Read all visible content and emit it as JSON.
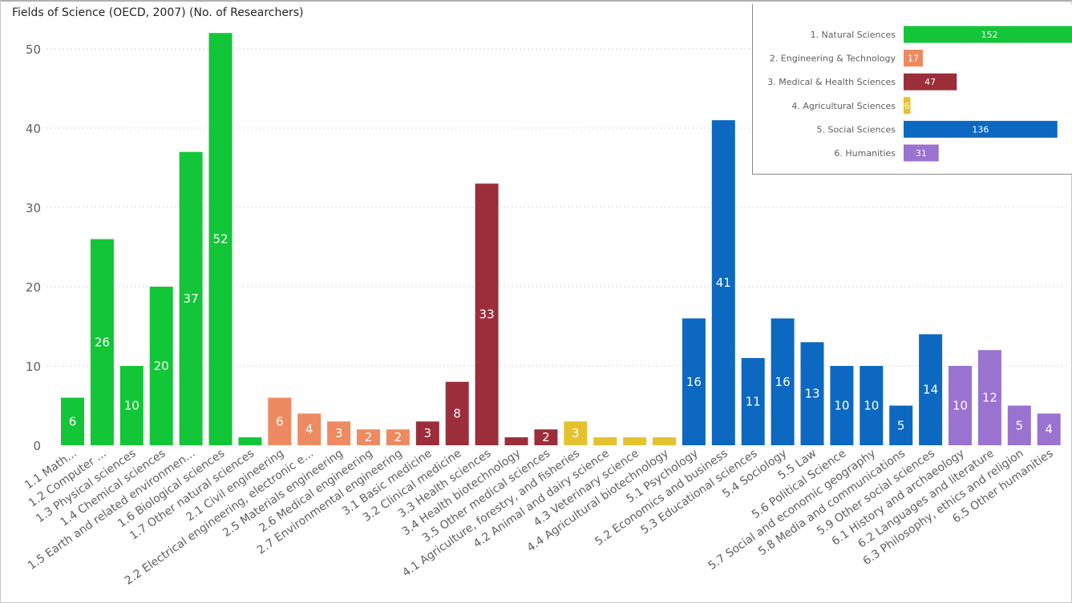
{
  "title": "Fields of Science (OECD, 2007) (No. of Researchers)",
  "colors": {
    "natural": "#13c638",
    "engineering": "#ee8a61",
    "medical": "#9b2e3a",
    "agricultural": "#e3c22e",
    "social": "#0c68c0",
    "humanities": "#9a72d0",
    "grid": "#d9d9d9",
    "axis_text": "#605e5c"
  },
  "chart_data": [
    {
      "type": "bar",
      "title": "Fields of Science (OECD, 2007) (No. of Researchers)",
      "xlabel": "",
      "ylabel": "",
      "ylim": [
        0,
        52
      ],
      "yticks": [
        0,
        10,
        20,
        30,
        40,
        50
      ],
      "grid": true,
      "categories": [
        "1.1 Math...",
        "1.2 Computer ...",
        "1.3 Physical sciences",
        "1.4 Chemical sciences",
        "1.5 Earth and related environmen...",
        "1.6 Biological sciences",
        "1.7 Other natural sciences",
        "2.1 Civil engineering",
        "2.2 Electrical engineering, electronic e...",
        "2.5 Materials engineering",
        "2.6 Medical engineering",
        "2.7 Environmental engineering",
        "3.1 Basic medicine",
        "3.2 Clinical medicine",
        "3.3 Health sciences",
        "3.4 Health biotechnology",
        "3.5 Other medical sciences",
        "4.1 Agriculture, forestry, and fisheries",
        "4.2 Animal and dairy science",
        "4.3 Veterinary science",
        "4.4 Agricultural biotechnology",
        "5.1 Psychology",
        "5.2 Economics and business",
        "5.3 Educational sciences",
        "5.4 Sociology",
        "5.5 Law",
        "5.6 Political Science",
        "5.7 Social and economic geography",
        "5.8 Media and communications",
        "5.9 Other social sciences",
        "6.1 History and archaeology",
        "6.2 Languages and literature",
        "6.3 Philosophy, ethics and religion",
        "6.5 Other humanities"
      ],
      "values": [
        6,
        26,
        10,
        20,
        37,
        52,
        1,
        6,
        4,
        3,
        2,
        2,
        3,
        8,
        33,
        1,
        2,
        3,
        1,
        1,
        1,
        16,
        41,
        11,
        16,
        13,
        10,
        10,
        5,
        14,
        10,
        12,
        5,
        4
      ],
      "groups": [
        "natural",
        "natural",
        "natural",
        "natural",
        "natural",
        "natural",
        "natural",
        "engineering",
        "engineering",
        "engineering",
        "engineering",
        "engineering",
        "medical",
        "medical",
        "medical",
        "medical",
        "medical",
        "agricultural",
        "agricultural",
        "agricultural",
        "agricultural",
        "social",
        "social",
        "social",
        "social",
        "social",
        "social",
        "social",
        "social",
        "social",
        "humanities",
        "humanities",
        "humanities",
        "humanities"
      ],
      "data_labels": [
        "6",
        "26",
        "10",
        "20",
        "37",
        "52",
        "",
        "6",
        "4",
        "3",
        "2",
        "2",
        "3",
        "8",
        "33",
        "",
        "2",
        "3",
        "",
        "",
        "",
        "16",
        "41",
        "11",
        "16",
        "13",
        "10",
        "10",
        "5",
        "14",
        "10",
        "12",
        "5",
        "4"
      ]
    },
    {
      "type": "bar",
      "orientation": "horizontal",
      "title": "",
      "categories": [
        "1. Natural Sciences",
        "2. Engineering & Technology",
        "3. Medical & Health Sciences",
        "4. Agricultural Sciences",
        "5. Social Sciences",
        "6. Humanities"
      ],
      "values": [
        152,
        17,
        47,
        6,
        136,
        31
      ],
      "groups": [
        "natural",
        "engineering",
        "medical",
        "agricultural",
        "social",
        "humanities"
      ]
    }
  ]
}
